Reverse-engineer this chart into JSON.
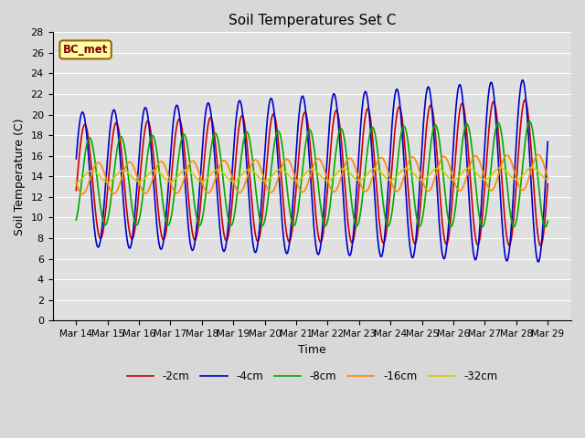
{
  "title": "Soil Temperatures Set C",
  "xlabel": "Time",
  "ylabel": "Soil Temperature (C)",
  "annotation": "BC_met",
  "x_tick_labels": [
    "Mar 14",
    "Mar 15",
    "Mar 16",
    "Mar 17",
    "Mar 18",
    "Mar 19",
    "Mar 20",
    "Mar 21",
    "Mar 22",
    "Mar 23",
    "Mar 24",
    "Mar 25",
    "Mar 26",
    "Mar 27",
    "Mar 28",
    "Mar 29"
  ],
  "ylim": [
    0,
    28
  ],
  "yticks": [
    0,
    2,
    4,
    6,
    8,
    10,
    12,
    14,
    16,
    18,
    20,
    22,
    24,
    26,
    28
  ],
  "series": [
    {
      "label": "-2cm",
      "color": "#cc0000",
      "lw": 1.2
    },
    {
      "label": "-4cm",
      "color": "#0000cc",
      "lw": 1.2
    },
    {
      "label": "-8cm",
      "color": "#00aa00",
      "lw": 1.2
    },
    {
      "label": "-16cm",
      "color": "#ff8800",
      "lw": 1.2
    },
    {
      "label": "-32cm",
      "color": "#cccc00",
      "lw": 1.2
    }
  ],
  "bg_color": "#e0e0e0",
  "fig_color": "#d8d8d8",
  "grid_color": "#ffffff",
  "n_points": 1440,
  "days": 15,
  "amplitudes": [
    5.5,
    6.5,
    4.2,
    1.5,
    0.55
  ],
  "means": [
    13.5,
    13.7,
    13.5,
    13.8,
    14.0
  ],
  "phase_shifts": [
    0.05,
    -0.1,
    0.35,
    0.9,
    2.5
  ],
  "trend_slopes": [
    0.06,
    0.06,
    0.05,
    0.04,
    0.02
  ],
  "amp_growth": [
    0.02,
    0.025,
    0.015,
    0.01,
    0.003
  ]
}
